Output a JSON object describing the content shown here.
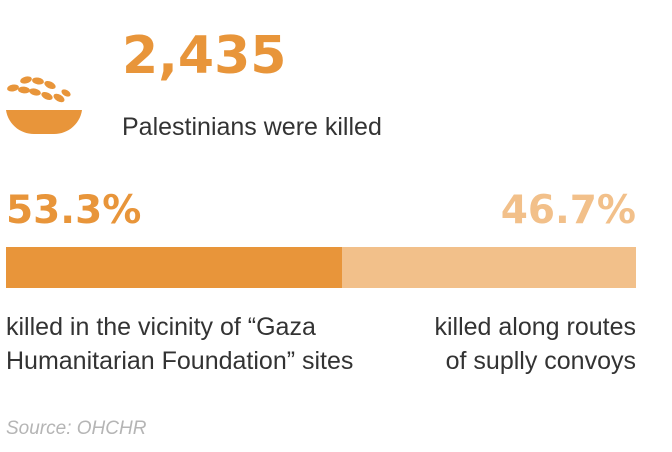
{
  "headline": {
    "value": "2,435",
    "subtitle": "Palestinians were killed"
  },
  "icon": "bowl-of-grain-icon",
  "colors": {
    "primary": "#e8953a",
    "secondary": "#f2c08a",
    "text": "#333333",
    "source": "#b5b5b5"
  },
  "chart_data": {
    "type": "bar",
    "orientation": "horizontal-stacked",
    "categories": [
      "killed in the vicinity  of “Gaza Humanitarian Foundation” sites",
      "killed along routes of suplly convoys"
    ],
    "series": [
      {
        "values": [
          53.3,
          46.7
        ]
      }
    ],
    "value_labels": [
      "53.3%",
      "46.7%"
    ],
    "label_lines": [
      [
        "killed in the vicinity  of “Gaza",
        "Humanitarian Foundation” sites"
      ],
      [
        "killed along routes",
        "of suplly convoys"
      ]
    ],
    "unit": "%",
    "total": 100
  },
  "source": "Source: OHCHR"
}
